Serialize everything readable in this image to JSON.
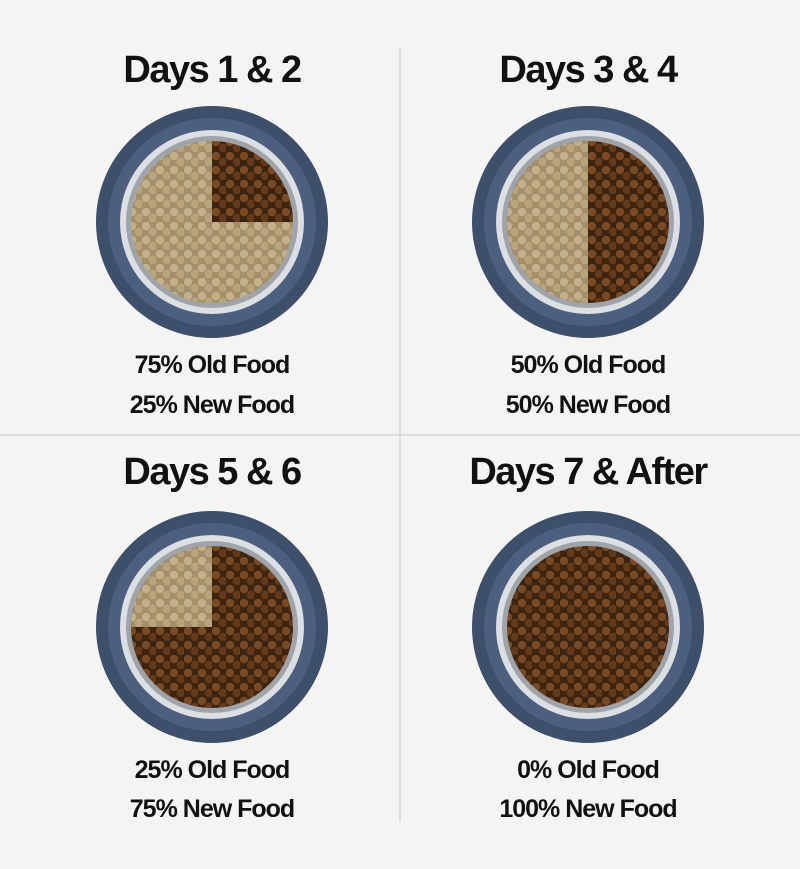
{
  "panels": [
    {
      "title": "Days 1 & 2",
      "lines": [
        "75% Old Food",
        "25% New Food"
      ]
    },
    {
      "title": "Days 3 & 4",
      "lines": [
        "50% Old Food",
        "50% New Food"
      ]
    },
    {
      "title": "Days 5 & 6",
      "lines": [
        "25% Old Food",
        "75% New Food"
      ]
    },
    {
      "title": "Days 7 & After",
      "lines": [
        "0% Old Food",
        "100% New Food"
      ]
    }
  ]
}
